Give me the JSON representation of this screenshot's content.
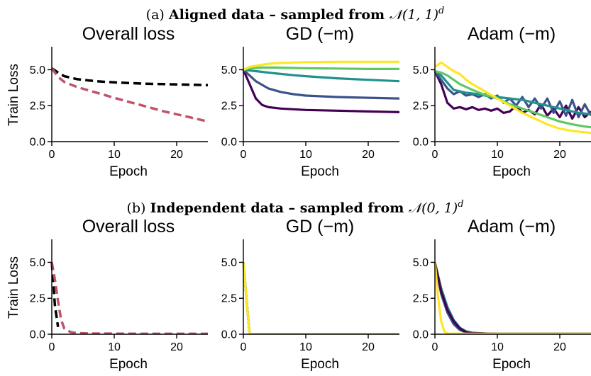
{
  "figure": {
    "sections": [
      {
        "prefix": "(a) ",
        "bold": "Aligned data – sampled from ",
        "math": "𝒩(1, 1)",
        "sup": "d"
      },
      {
        "prefix": "(b) ",
        "bold": "Independent data – sampled from ",
        "math": "𝒩(0, 1)",
        "sup": "d"
      }
    ],
    "colors": {
      "viridis": [
        "#440154",
        "#3b528b",
        "#21918c",
        "#5ec962",
        "#fde725"
      ],
      "black": "#000000",
      "rose": "#c1526a"
    }
  },
  "chart_data": [
    {
      "type": "line",
      "section": 0,
      "title": "Overall loss",
      "xlabel": "Epoch",
      "ylabel": "Train Loss",
      "xlim": [
        0,
        25
      ],
      "ylim": [
        0,
        6.5
      ],
      "xticks": [
        0,
        10,
        20
      ],
      "yticks": [
        0.0,
        2.5,
        5.0
      ],
      "series": [
        {
          "color": "#000000",
          "dash": true,
          "x": [
            0,
            1,
            2,
            4,
            6,
            8,
            10,
            12,
            15,
            18,
            21,
            25
          ],
          "y": [
            5.1,
            4.8,
            4.55,
            4.35,
            4.25,
            4.17,
            4.12,
            4.08,
            4.03,
            4.0,
            3.97,
            3.93
          ]
        },
        {
          "color": "#c1526a",
          "dash": true,
          "x": [
            0,
            1,
            2,
            4,
            6,
            8,
            10,
            12,
            15,
            18,
            21,
            25
          ],
          "y": [
            5.1,
            4.5,
            4.15,
            3.8,
            3.55,
            3.3,
            3.05,
            2.8,
            2.45,
            2.1,
            1.8,
            1.4
          ]
        }
      ]
    },
    {
      "type": "line",
      "section": 0,
      "title": "GD (−m)",
      "xlabel": "Epoch",
      "ylabel": "",
      "xlim": [
        0,
        25
      ],
      "ylim": [
        0,
        6.5
      ],
      "xticks": [
        0,
        10,
        20
      ],
      "yticks": [
        0.0,
        2.5,
        5.0
      ],
      "series": [
        {
          "color": "#440154",
          "dash": false,
          "x": [
            0,
            1,
            2,
            3,
            4,
            6,
            8,
            10,
            15,
            20,
            25
          ],
          "y": [
            5.0,
            4.0,
            3.0,
            2.55,
            2.4,
            2.3,
            2.25,
            2.2,
            2.15,
            2.1,
            2.05
          ]
        },
        {
          "color": "#3b528b",
          "dash": false,
          "x": [
            0,
            1,
            2,
            4,
            6,
            8,
            10,
            15,
            20,
            25
          ],
          "y": [
            5.0,
            4.6,
            4.2,
            3.7,
            3.45,
            3.3,
            3.2,
            3.1,
            3.05,
            3.0
          ]
        },
        {
          "color": "#21918c",
          "dash": false,
          "x": [
            0,
            1,
            3,
            5,
            8,
            10,
            15,
            20,
            25
          ],
          "y": [
            5.0,
            4.95,
            4.85,
            4.75,
            4.62,
            4.55,
            4.4,
            4.3,
            4.2
          ]
        },
        {
          "color": "#5ec962",
          "dash": false,
          "x": [
            0,
            1,
            3,
            5,
            8,
            10,
            15,
            20,
            25
          ],
          "y": [
            5.0,
            5.1,
            5.15,
            5.15,
            5.12,
            5.1,
            5.08,
            5.05,
            5.05
          ]
        },
        {
          "color": "#fde725",
          "dash": false,
          "x": [
            0,
            1,
            3,
            5,
            8,
            10,
            15,
            20,
            25
          ],
          "y": [
            5.0,
            5.2,
            5.35,
            5.45,
            5.5,
            5.52,
            5.55,
            5.55,
            5.55
          ]
        }
      ]
    },
    {
      "type": "line",
      "section": 0,
      "title": "Adam (−m)",
      "xlabel": "Epoch",
      "ylabel": "",
      "xlim": [
        0,
        25
      ],
      "ylim": [
        0,
        6.5
      ],
      "xticks": [
        0,
        10,
        20
      ],
      "yticks": [
        0.0,
        2.5,
        5.0
      ],
      "series": [
        {
          "color": "#440154",
          "dash": false,
          "x": [
            0,
            1,
            2,
            3,
            4,
            5,
            6,
            7,
            8,
            9,
            10,
            11,
            12,
            13,
            14,
            15,
            16,
            17,
            18,
            19,
            20,
            21,
            22,
            23,
            24,
            25
          ],
          "y": [
            4.9,
            4.0,
            2.7,
            2.3,
            2.4,
            2.25,
            2.4,
            2.2,
            2.3,
            2.15,
            2.3,
            2.0,
            2.1,
            2.5,
            2.0,
            2.2,
            1.9,
            2.6,
            1.8,
            2.3,
            1.7,
            2.5,
            1.6,
            2.4,
            1.7,
            2.1
          ]
        },
        {
          "color": "#3b528b",
          "dash": false,
          "x": [
            0,
            1,
            2,
            3,
            4,
            5,
            6,
            7,
            8,
            9,
            10,
            11,
            12,
            13,
            14,
            15,
            16,
            17,
            18,
            19,
            20,
            21,
            22,
            23,
            24,
            25
          ],
          "y": [
            4.9,
            4.3,
            3.7,
            3.3,
            3.5,
            3.2,
            3.3,
            3.1,
            3.3,
            3.0,
            3.2,
            2.7,
            3.0,
            2.5,
            3.1,
            2.4,
            3.0,
            2.3,
            3.0,
            2.0,
            2.8,
            1.8,
            2.9,
            1.7,
            2.6,
            1.8
          ]
        },
        {
          "color": "#21918c",
          "dash": false,
          "x": [
            0,
            1,
            2,
            3,
            4,
            5,
            6,
            7,
            8,
            9,
            10,
            11,
            12,
            13,
            14,
            15,
            16,
            17,
            18,
            19,
            20,
            21,
            22,
            23,
            24,
            25
          ],
          "y": [
            4.9,
            4.6,
            4.1,
            3.6,
            3.5,
            3.4,
            3.35,
            3.3,
            3.2,
            3.15,
            3.1,
            3.05,
            3.0,
            2.95,
            2.9,
            2.8,
            2.7,
            2.6,
            2.5,
            2.4,
            2.3,
            2.2,
            2.1,
            2.0,
            1.95,
            1.9
          ]
        },
        {
          "color": "#5ec962",
          "dash": false,
          "x": [
            0,
            1,
            2,
            3,
            4,
            6,
            8,
            10,
            12,
            14,
            16,
            18,
            20,
            22,
            24,
            25
          ],
          "y": [
            4.9,
            4.8,
            4.6,
            4.3,
            4.0,
            3.6,
            3.25,
            3.0,
            2.6,
            2.3,
            2.0,
            1.7,
            1.4,
            1.2,
            1.05,
            1.0
          ]
        },
        {
          "color": "#fde725",
          "dash": false,
          "x": [
            0,
            1,
            2,
            3,
            4,
            5,
            6,
            8,
            10,
            12,
            14,
            16,
            18,
            20,
            22,
            24,
            25
          ],
          "y": [
            5.2,
            5.5,
            5.2,
            4.9,
            4.7,
            4.3,
            4.0,
            3.5,
            3.0,
            2.5,
            2.0,
            1.6,
            1.2,
            0.9,
            0.75,
            0.65,
            0.6
          ]
        }
      ]
    },
    {
      "type": "line",
      "section": 1,
      "title": "Overall loss",
      "xlabel": "Epoch",
      "ylabel": "Train Loss",
      "xlim": [
        0,
        25
      ],
      "ylim": [
        0,
        6.5
      ],
      "xticks": [
        0,
        10,
        20
      ],
      "yticks": [
        0.0,
        2.5,
        5.0
      ],
      "series": [
        {
          "color": "#000000",
          "dash": true,
          "x": [
            0,
            0.5,
            1
          ],
          "y": [
            5.0,
            2.0,
            0.5
          ]
        },
        {
          "color": "#c1526a",
          "dash": true,
          "x": [
            0,
            0.5,
            1,
            1.5,
            2,
            3,
            4,
            6,
            10,
            15,
            20,
            25
          ],
          "y": [
            5.0,
            3.8,
            2.3,
            1.0,
            0.4,
            0.15,
            0.08,
            0.05,
            0.04,
            0.03,
            0.03,
            0.03
          ]
        }
      ]
    },
    {
      "type": "line",
      "section": 1,
      "title": "GD (−m)",
      "xlabel": "Epoch",
      "ylabel": "",
      "xlim": [
        0,
        25
      ],
      "ylim": [
        0,
        6.5
      ],
      "xticks": [
        0,
        10,
        20
      ],
      "yticks": [
        0.0,
        2.5,
        5.0
      ],
      "series": [
        {
          "color": "#440154",
          "dash": false,
          "x": [
            0,
            1,
            2,
            5,
            10,
            15,
            20,
            25
          ],
          "y": [
            5.0,
            0.0,
            0.0,
            0.0,
            0.0,
            0.0,
            0.0,
            0.0
          ]
        },
        {
          "color": "#3b528b",
          "dash": false,
          "x": [
            0,
            1,
            2,
            5,
            10,
            15,
            20,
            25
          ],
          "y": [
            5.0,
            0.0,
            0.0,
            0.0,
            0.0,
            0.0,
            0.0,
            0.0
          ]
        },
        {
          "color": "#21918c",
          "dash": false,
          "x": [
            0,
            1,
            2,
            5,
            10,
            15,
            20,
            25
          ],
          "y": [
            5.0,
            0.0,
            0.0,
            0.0,
            0.0,
            0.0,
            0.0,
            0.0
          ]
        },
        {
          "color": "#5ec962",
          "dash": false,
          "x": [
            0,
            1,
            2,
            5,
            10,
            15,
            20,
            25
          ],
          "y": [
            5.0,
            0.0,
            0.0,
            0.0,
            0.0,
            0.0,
            0.0,
            0.0
          ]
        },
        {
          "color": "#fde725",
          "dash": false,
          "x": [
            0,
            1,
            2,
            5,
            10,
            15,
            20,
            25
          ],
          "y": [
            5.0,
            0.0,
            0.0,
            0.0,
            0.0,
            0.0,
            0.0,
            0.0
          ]
        }
      ]
    },
    {
      "type": "line",
      "section": 1,
      "title": "Adam (−m)",
      "xlabel": "Epoch",
      "ylabel": "",
      "xlim": [
        0,
        25
      ],
      "ylim": [
        0,
        6.5
      ],
      "xticks": [
        0,
        10,
        20
      ],
      "yticks": [
        0.0,
        2.5,
        5.0
      ],
      "series": [
        {
          "color": "#21918c",
          "dash": false,
          "x": [
            0,
            1,
            2,
            3,
            4,
            5,
            6,
            8,
            10,
            15,
            20,
            25
          ],
          "y": [
            5.0,
            3.2,
            1.9,
            1.0,
            0.45,
            0.2,
            0.1,
            0.05,
            0.03,
            0.03,
            0.03,
            0.03
          ]
        },
        {
          "color": "#5ec962",
          "dash": false,
          "x": [
            0,
            1,
            2,
            3,
            4,
            5,
            6,
            8,
            10,
            15,
            20,
            25
          ],
          "y": [
            5.0,
            3.0,
            1.6,
            0.8,
            0.35,
            0.15,
            0.08,
            0.04,
            0.03,
            0.03,
            0.03,
            0.03
          ]
        },
        {
          "color": "#3b528b",
          "dash": false,
          "x": [
            0,
            1,
            2,
            3,
            4,
            5,
            6,
            8,
            10,
            15,
            20,
            25
          ],
          "y": [
            5.0,
            2.8,
            1.5,
            0.7,
            0.3,
            0.12,
            0.06,
            0.04,
            0.03,
            0.03,
            0.03,
            0.03
          ]
        },
        {
          "color": "#440154",
          "dash": false,
          "x": [
            0,
            1,
            2,
            3,
            4,
            5,
            6,
            8,
            10,
            15,
            20,
            25
          ],
          "y": [
            5.0,
            3.0,
            1.7,
            0.9,
            0.4,
            0.15,
            0.08,
            0.05,
            0.03,
            0.03,
            0.03,
            0.03
          ]
        },
        {
          "color": "#fde725",
          "dash": false,
          "x": [
            0,
            0.5,
            1,
            1.5,
            2,
            5,
            10,
            15,
            20,
            25
          ],
          "y": [
            5.0,
            2.6,
            0.9,
            0.2,
            0.05,
            0.03,
            0.03,
            0.03,
            0.03,
            0.03
          ]
        }
      ]
    }
  ]
}
